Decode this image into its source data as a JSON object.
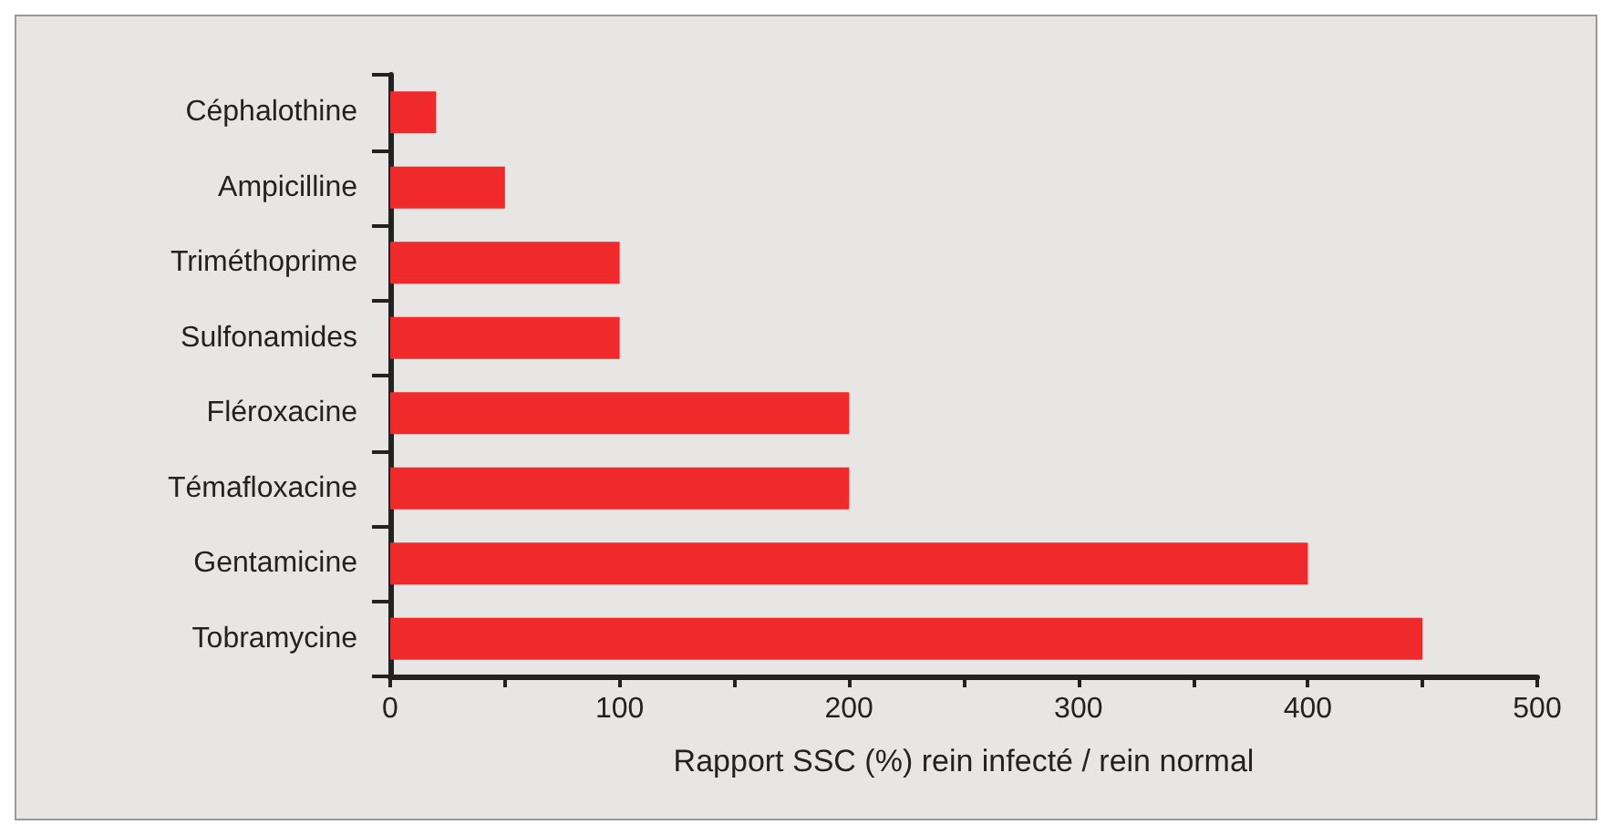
{
  "chart_data": {
    "type": "bar",
    "orientation": "horizontal",
    "xlabel": "Rapport SSC (%) rein infecté / rein normal",
    "categories": [
      "Céphalothine",
      "Ampicilline",
      "Triméthoprime",
      "Sulfonamides",
      "Fléroxacine",
      "Témafloxacine",
      "Gentamicine",
      "Tobramycine"
    ],
    "values": [
      20,
      50,
      100,
      100,
      200,
      200,
      400,
      450
    ],
    "color": "#f02a2a",
    "xlim": [
      0,
      500
    ],
    "xticks": [
      0,
      {
        "value": 50,
        "label": null
      },
      100,
      {
        "value": 150,
        "label": null
      },
      200,
      {
        "value": 250,
        "label": null
      },
      300,
      {
        "value": 350,
        "label": null
      },
      400,
      {
        "value": 450,
        "label": null
      },
      500
    ],
    "grid": false
  }
}
